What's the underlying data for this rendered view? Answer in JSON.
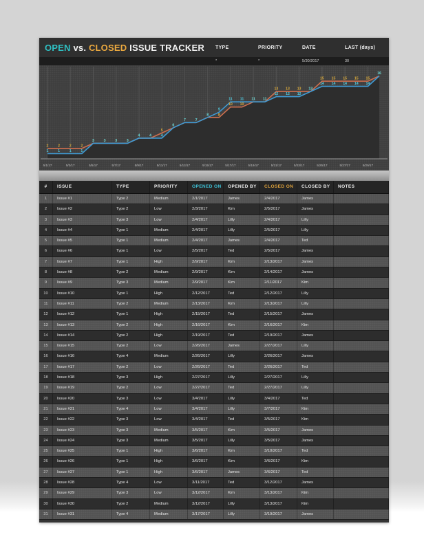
{
  "header": {
    "title": {
      "open": "OPEN",
      "vs": "vs.",
      "closed": "CLOSED",
      "rest": "ISSUE TRACKER"
    },
    "filters": [
      {
        "label": "TYPE",
        "value": "*"
      },
      {
        "label": "PRIORITY",
        "value": "*"
      },
      {
        "label": "DATE",
        "value": "5/30/2017"
      },
      {
        "label": "LAST (days)",
        "value": "30"
      }
    ]
  },
  "chart_data": {
    "type": "line",
    "title": "Open vs. Closed issues over time",
    "xlabel": "",
    "ylabel": "",
    "ylim": [
      0,
      17
    ],
    "grid": "vertical",
    "legend_position": "none",
    "tick_labels": [
      "5/1/17",
      "5/3/17",
      "5/5/17",
      "5/7/17",
      "5/9/17",
      "5/11/17",
      "5/13/17",
      "5/15/17",
      "5/17/17",
      "5/19/17",
      "5/21/17",
      "5/23/17",
      "5/25/17",
      "5/27/17",
      "5/29/17"
    ],
    "x": [
      "5/1/17",
      "5/2/17",
      "5/3/17",
      "5/4/17",
      "5/5/17",
      "5/6/17",
      "5/7/17",
      "5/8/17",
      "5/9/17",
      "5/10/17",
      "5/11/17",
      "5/12/17",
      "5/13/17",
      "5/14/17",
      "5/15/17",
      "5/16/17",
      "5/17/17",
      "5/18/17",
      "5/19/17",
      "5/20/17",
      "5/21/17",
      "5/22/17",
      "5/23/17",
      "5/24/17",
      "5/25/17",
      "5/26/17",
      "5/27/17",
      "5/28/17",
      "5/29/17",
      "5/30/17"
    ],
    "series": [
      {
        "name": "CLOSED",
        "line_color": "#cf6f4e",
        "label_color": "#d9a93a",
        "values": [
          2,
          2,
          2,
          2,
          3,
          3,
          3,
          3,
          4,
          4,
          5,
          6,
          7,
          7,
          8,
          8,
          10,
          10,
          11,
          11,
          13,
          13,
          13,
          13,
          15,
          15,
          15,
          15,
          15,
          16
        ]
      },
      {
        "name": "OPEN",
        "line_color": "#3e9bd6",
        "label_color": "#4fc8dd",
        "values": [
          1,
          1,
          1,
          1,
          3,
          3,
          3,
          3,
          4,
          4,
          4,
          6,
          7,
          7,
          8,
          9,
          11,
          11,
          11,
          11,
          12,
          12,
          12,
          13,
          14,
          14,
          14,
          14,
          14,
          16
        ]
      }
    ]
  },
  "table": {
    "columns": [
      "#",
      "ISSUE",
      "TYPE",
      "PRIORITY",
      "OPENED ON",
      "OPENED BY",
      "CLOSED ON",
      "CLOSED BY",
      "NOTES"
    ],
    "rows": [
      [
        "1",
        "Issue #1",
        "Type 2",
        "Medium",
        "2/1/2017",
        "James",
        "2/4/2017",
        "James",
        ""
      ],
      [
        "2",
        "Issue #2",
        "Type 2",
        "Low",
        "2/3/2017",
        "Kim",
        "2/5/2017",
        "James",
        ""
      ],
      [
        "3",
        "Issue #3",
        "Type 3",
        "Low",
        "2/4/2017",
        "Lilly",
        "2/4/2017",
        "Lilly",
        ""
      ],
      [
        "4",
        "Issue #4",
        "Type 1",
        "Medium",
        "2/4/2017",
        "Lilly",
        "2/5/2017",
        "Lilly",
        ""
      ],
      [
        "5",
        "Issue #5",
        "Type 1",
        "Medium",
        "2/4/2017",
        "James",
        "2/4/2017",
        "Ted",
        ""
      ],
      [
        "6",
        "Issue #6",
        "Type 1",
        "Low",
        "2/5/2017",
        "Ted",
        "2/5/2017",
        "James",
        ""
      ],
      [
        "7",
        "Issue #7",
        "Type 1",
        "High",
        "2/9/2017",
        "Kim",
        "2/13/2017",
        "James",
        ""
      ],
      [
        "8",
        "Issue #8",
        "Type 2",
        "Medium",
        "2/9/2017",
        "Kim",
        "2/14/2017",
        "James",
        ""
      ],
      [
        "9",
        "Issue #9",
        "Type 3",
        "Medium",
        "2/9/2017",
        "Kim",
        "2/11/2017",
        "Kim",
        ""
      ],
      [
        "10",
        "Issue #10",
        "Type 1",
        "High",
        "2/12/2017",
        "Ted",
        "2/12/2017",
        "Lilly",
        ""
      ],
      [
        "11",
        "Issue #11",
        "Type 2",
        "Medium",
        "2/13/2017",
        "Kim",
        "2/13/2017",
        "Lilly",
        ""
      ],
      [
        "12",
        "Issue #12",
        "Type 1",
        "High",
        "2/15/2017",
        "Ted",
        "2/15/2017",
        "James",
        ""
      ],
      [
        "13",
        "Issue #13",
        "Type 2",
        "High",
        "2/16/2017",
        "Kim",
        "2/16/2017",
        "Kim",
        ""
      ],
      [
        "14",
        "Issue #14",
        "Type 2",
        "High",
        "2/19/2017",
        "Ted",
        "2/19/2017",
        "James",
        ""
      ],
      [
        "15",
        "Issue #15",
        "Type 2",
        "Low",
        "2/26/2017",
        "James",
        "2/27/2017",
        "Lilly",
        ""
      ],
      [
        "16",
        "Issue #16",
        "Type 4",
        "Medium",
        "2/26/2017",
        "Lilly",
        "2/26/2017",
        "James",
        ""
      ],
      [
        "17",
        "Issue #17",
        "Type 2",
        "Low",
        "2/26/2017",
        "Ted",
        "2/26/2017",
        "Ted",
        ""
      ],
      [
        "18",
        "Issue #18",
        "Type 3",
        "High",
        "2/27/2017",
        "Lilly",
        "2/27/2017",
        "Lilly",
        ""
      ],
      [
        "19",
        "Issue #19",
        "Type 2",
        "Low",
        "2/27/2017",
        "Ted",
        "2/27/2017",
        "Lilly",
        ""
      ],
      [
        "20",
        "Issue #20",
        "Type 3",
        "Low",
        "3/4/2017",
        "Lilly",
        "3/4/2017",
        "Ted",
        ""
      ],
      [
        "21",
        "Issue #21",
        "Type 4",
        "Low",
        "3/4/2017",
        "Lilly",
        "3/7/2017",
        "Kim",
        ""
      ],
      [
        "22",
        "Issue #22",
        "Type 3",
        "Low",
        "3/4/2017",
        "Ted",
        "3/5/2017",
        "Kim",
        ""
      ],
      [
        "23",
        "Issue #23",
        "Type 3",
        "Medium",
        "3/5/2017",
        "Kim",
        "3/5/2017",
        "James",
        ""
      ],
      [
        "24",
        "Issue #24",
        "Type 3",
        "Medium",
        "3/5/2017",
        "Lilly",
        "3/5/2017",
        "James",
        ""
      ],
      [
        "25",
        "Issue #25",
        "Type 1",
        "High",
        "3/6/2017",
        "Kim",
        "3/10/2017",
        "Ted",
        ""
      ],
      [
        "26",
        "Issue #26",
        "Type 1",
        "High",
        "3/6/2017",
        "Kim",
        "3/6/2017",
        "Kim",
        ""
      ],
      [
        "27",
        "Issue #27",
        "Type 1",
        "High",
        "3/6/2017",
        "James",
        "3/6/2017",
        "Ted",
        ""
      ],
      [
        "28",
        "Issue #28",
        "Type 4",
        "Low",
        "3/11/2017",
        "Ted",
        "3/12/2017",
        "James",
        ""
      ],
      [
        "29",
        "Issue #29",
        "Type 3",
        "Low",
        "3/12/2017",
        "Kim",
        "3/13/2017",
        "Kim",
        ""
      ],
      [
        "30",
        "Issue #30",
        "Type 2",
        "Medium",
        "3/12/2017",
        "Lilly",
        "3/13/2017",
        "Kim",
        ""
      ],
      [
        "31",
        "Issue #31",
        "Type 4",
        "Medium",
        "3/17/2017",
        "Lilly",
        "3/19/2017",
        "James",
        ""
      ]
    ]
  },
  "colors": {
    "accent_teal": "#2fc0c3",
    "accent_orange": "#eba93f",
    "sheet_bg": "#3a3a3a",
    "header_bg": "#2f2f2f",
    "closed_line": "#cf6f4e",
    "open_line": "#3e9bd6",
    "closed_label": "#d9a93a",
    "open_label": "#4fc8dd"
  }
}
